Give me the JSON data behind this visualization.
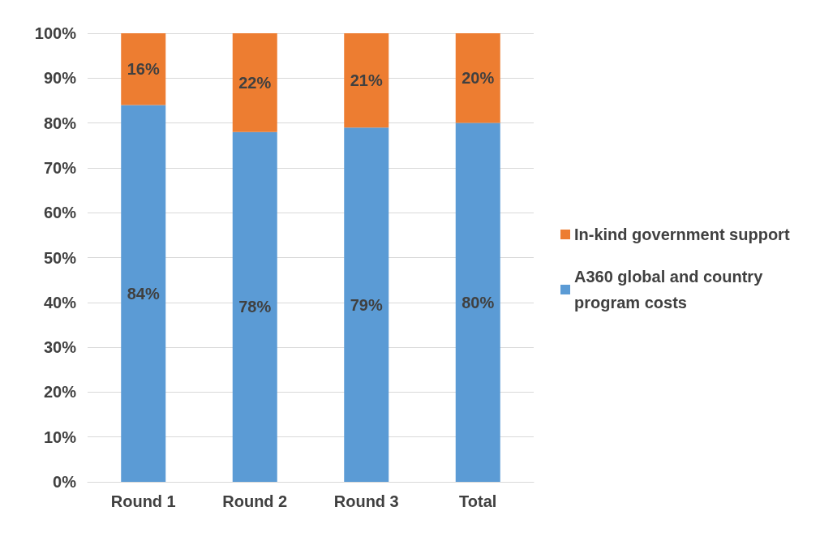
{
  "chart_data": {
    "type": "bar",
    "stacked": true,
    "categories": [
      "Round 1",
      "Round 2",
      "Round 3",
      "Total"
    ],
    "series": [
      {
        "name": "A360 global and country program costs",
        "color": "#5b9bd5",
        "values": [
          84,
          78,
          79,
          80
        ],
        "value_labels": [
          "84%",
          "78%",
          "79%",
          "80%"
        ]
      },
      {
        "name": "In-kind government support",
        "color": "#ed7d31",
        "values": [
          16,
          22,
          21,
          20
        ],
        "value_labels": [
          "16%",
          "22%",
          "21%",
          "20%"
        ]
      }
    ],
    "ylim": [
      0,
      100
    ],
    "yticks": [
      {
        "value": 0,
        "label": "0%"
      },
      {
        "value": 10,
        "label": "10%"
      },
      {
        "value": 20,
        "label": "20%"
      },
      {
        "value": 30,
        "label": "30%"
      },
      {
        "value": 40,
        "label": "40%"
      },
      {
        "value": 50,
        "label": "50%"
      },
      {
        "value": 60,
        "label": "60%"
      },
      {
        "value": 70,
        "label": "70%"
      },
      {
        "value": 80,
        "label": "80%"
      },
      {
        "value": 90,
        "label": "90%"
      },
      {
        "value": 100,
        "label": "100%"
      }
    ],
    "grid": "y",
    "legend": "right"
  }
}
